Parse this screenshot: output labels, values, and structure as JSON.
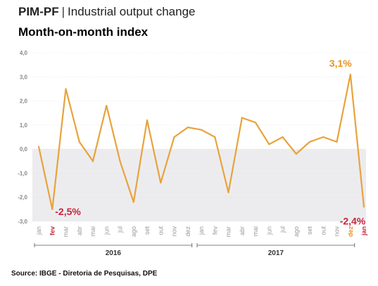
{
  "header": {
    "brand": "PIM-PF",
    "separator": "|",
    "title": "Industrial output change",
    "subtitle": "Month-on-month index"
  },
  "source": "Source: IBGE - Diretoria de Pesquisas, DPE",
  "colors": {
    "line": "#E8A33B",
    "highlight_orange": "#E8931E",
    "highlight_red": "#C8243A",
    "negative_band": "#ECECEF",
    "axis_text": "#888888",
    "gridline": "#DDDDDD"
  },
  "chart_data": {
    "type": "line",
    "ylim": [
      -3.0,
      4.0
    ],
    "yticks": [
      "4,0",
      "3,0",
      "2,0",
      "1,0",
      "0,0",
      "-1,0",
      "-2,0",
      "-3,0"
    ],
    "ytick_values": [
      4,
      3,
      2,
      1,
      0,
      -1,
      -2,
      -3
    ],
    "categories": [
      "jan",
      "fev",
      "mar",
      "abr",
      "mai",
      "jun",
      "jul",
      "ago",
      "set",
      "out",
      "nov",
      "dez",
      "jan",
      "fev",
      "mar",
      "abr",
      "mai",
      "jun",
      "jul",
      "ago",
      "set",
      "out",
      "nov",
      "dez",
      "jan"
    ],
    "category_colors": [
      "#999999",
      "#C8243A",
      "#999999",
      "#999999",
      "#999999",
      "#999999",
      "#999999",
      "#999999",
      "#999999",
      "#999999",
      "#999999",
      "#999999",
      "#999999",
      "#999999",
      "#999999",
      "#999999",
      "#999999",
      "#999999",
      "#999999",
      "#999999",
      "#999999",
      "#999999",
      "#999999",
      "#E8931E",
      "#C8243A"
    ],
    "category_bold": [
      false,
      true,
      false,
      false,
      false,
      false,
      false,
      false,
      false,
      false,
      false,
      false,
      false,
      false,
      false,
      false,
      false,
      false,
      false,
      false,
      false,
      false,
      false,
      true,
      true
    ],
    "series": [
      {
        "values": [
          0.1,
          -2.5,
          2.5,
          0.3,
          -0.5,
          1.8,
          -0.5,
          -2.2,
          1.2,
          -1.4,
          0.5,
          0.9,
          0.8,
          0.5,
          -1.8,
          1.3,
          1.1,
          0.2,
          0.5,
          -0.2,
          0.3,
          0.5,
          0.3,
          3.1,
          -2.4
        ]
      }
    ],
    "year_groups": [
      {
        "label": "2016",
        "start": 0,
        "end": 11
      },
      {
        "label": "2017",
        "start": 12,
        "end": 23
      }
    ],
    "annotations": [
      {
        "index": 1,
        "text": "-2,5%",
        "color": "#C8243A",
        "position": "right"
      },
      {
        "index": 23,
        "text": "3,1%",
        "color": "#E8931E",
        "position": "above"
      },
      {
        "index": 24,
        "text": "-2,4%",
        "color": "#C8243A",
        "position": "below"
      }
    ]
  }
}
